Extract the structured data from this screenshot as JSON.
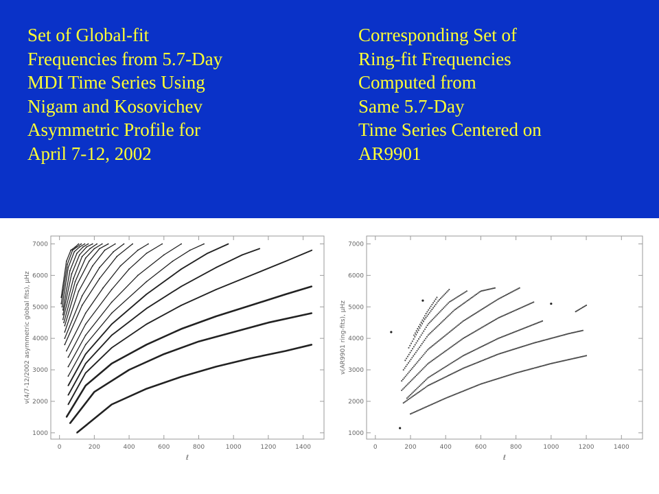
{
  "captions": {
    "left": [
      "Set of Global-fit",
      "Frequencies from 5.7-Day",
      "MDI Time Series Using",
      "Nigam and Kosovichev",
      "Asymmetric Profile for",
      "April 7-12, 2002"
    ],
    "right": [
      "Corresponding Set of",
      "Ring-fit Frequencies",
      "Computed from",
      "Same 5.7-Day",
      "Time Series Centered on",
      "AR9901"
    ]
  },
  "colors": {
    "background": "#0a32c8",
    "caption_text": "#ffff33",
    "marks": "#222222"
  },
  "chart_data": [
    {
      "type": "scatter",
      "xlabel": "ℓ",
      "ylabel": "ν(4/7-12/2002 asymmetric global fits), μHz",
      "xlim": [
        -50,
        1520
      ],
      "ylim": [
        800,
        7250
      ],
      "xticks": [
        0,
        200,
        400,
        600,
        800,
        1000,
        1200,
        1400
      ],
      "yticks": [
        1000,
        2000,
        3000,
        4000,
        5000,
        6000,
        7000
      ],
      "series": [
        {
          "x": [
            100,
            300,
            500,
            700,
            900,
            1100,
            1300,
            1450
          ],
          "y": [
            1000,
            1900,
            2400,
            2780,
            3100,
            3370,
            3600,
            3800
          ]
        },
        {
          "x": [
            60,
            200,
            400,
            600,
            800,
            1000,
            1200,
            1450
          ],
          "y": [
            1300,
            2300,
            3000,
            3500,
            3900,
            4200,
            4500,
            4800
          ]
        },
        {
          "x": [
            40,
            150,
            300,
            500,
            700,
            900,
            1100,
            1300,
            1450
          ],
          "y": [
            1500,
            2500,
            3200,
            3800,
            4300,
            4700,
            5050,
            5400,
            5650
          ]
        },
        {
          "x": [
            50,
            150,
            300,
            500,
            700,
            900,
            1100,
            1300,
            1450
          ],
          "y": [
            1900,
            2900,
            3700,
            4450,
            5050,
            5550,
            6000,
            6450,
            6800
          ]
        },
        {
          "x": [
            50,
            150,
            300,
            500,
            700,
            900,
            1050,
            1150
          ],
          "y": [
            2200,
            3200,
            4100,
            4950,
            5650,
            6250,
            6650,
            6850
          ]
        },
        {
          "x": [
            50,
            150,
            300,
            500,
            700,
            850,
            970
          ],
          "y": [
            2500,
            3500,
            4450,
            5400,
            6200,
            6700,
            7000
          ]
        },
        {
          "x": [
            50,
            150,
            300,
            500,
            650,
            750,
            830
          ],
          "y": [
            2800,
            3800,
            4800,
            5800,
            6450,
            6800,
            7000
          ]
        },
        {
          "x": [
            50,
            150,
            300,
            450,
            600,
            700
          ],
          "y": [
            3100,
            4100,
            5150,
            6000,
            6650,
            7000
          ]
        },
        {
          "x": [
            50,
            150,
            300,
            400,
            500,
            590
          ],
          "y": [
            3400,
            4450,
            5550,
            6200,
            6700,
            7000
          ]
        },
        {
          "x": [
            40,
            150,
            250,
            350,
            450,
            510
          ],
          "y": [
            3600,
            4800,
            5600,
            6300,
            6800,
            7000
          ]
        },
        {
          "x": [
            30,
            130,
            230,
            330,
            420
          ],
          "y": [
            3800,
            5050,
            5900,
            6600,
            7000
          ]
        },
        {
          "x": [
            30,
            130,
            230,
            310,
            370
          ],
          "y": [
            4000,
            5350,
            6250,
            6750,
            7000
          ]
        },
        {
          "x": [
            30,
            110,
            190,
            260,
            320
          ],
          "y": [
            4200,
            5500,
            6300,
            6800,
            7000
          ]
        },
        {
          "x": [
            30,
            100,
            170,
            230,
            280
          ],
          "y": [
            4400,
            5700,
            6450,
            6850,
            7000
          ]
        },
        {
          "x": [
            25,
            90,
            150,
            200,
            245
          ],
          "y": [
            4500,
            5800,
            6550,
            6850,
            7000
          ]
        },
        {
          "x": [
            20,
            80,
            130,
            175,
            215
          ],
          "y": [
            4600,
            5900,
            6600,
            6850,
            7000
          ]
        },
        {
          "x": [
            20,
            70,
            115,
            155,
            190
          ],
          "y": [
            4750,
            6050,
            6650,
            6900,
            7000
          ]
        },
        {
          "x": [
            20,
            60,
            100,
            135,
            165
          ],
          "y": [
            4900,
            6150,
            6700,
            6900,
            7000
          ]
        },
        {
          "x": [
            15,
            50,
            85,
            115,
            145
          ],
          "y": [
            5000,
            6250,
            6750,
            6900,
            7000
          ]
        },
        {
          "x": [
            10,
            45,
            75,
            100,
            125
          ],
          "y": [
            5100,
            6350,
            6800,
            6900,
            7000
          ]
        },
        {
          "x": [
            10,
            40,
            65,
            90,
            110
          ],
          "y": [
            5300,
            6450,
            6800,
            6900,
            7000
          ]
        }
      ]
    },
    {
      "type": "scatter",
      "xlabel": "ℓ",
      "ylabel": "ν(AR9901 ring-fits), μHz",
      "xlim": [
        -50,
        1520
      ],
      "ylim": [
        800,
        7250
      ],
      "xticks": [
        0,
        200,
        400,
        600,
        800,
        1000,
        1200,
        1400
      ],
      "yticks": [
        1000,
        2000,
        3000,
        4000,
        5000,
        6000,
        7000
      ],
      "series": [
        {
          "x": [
            200,
            400,
            600,
            800,
            1000,
            1200
          ],
          "y": [
            1600,
            2100,
            2550,
            2900,
            3200,
            3450
          ]
        },
        {
          "x": [
            160,
            300,
            500,
            700,
            900,
            1100,
            1180
          ],
          "y": [
            1950,
            2500,
            3050,
            3500,
            3850,
            4150,
            4250
          ]
        },
        {
          "x": [
            180,
            300,
            500,
            700,
            950
          ],
          "y": [
            2100,
            2750,
            3450,
            4000,
            4550
          ]
        },
        {
          "x": [
            150,
            300,
            500,
            700,
            900
          ],
          "y": [
            2350,
            3200,
            4000,
            4650,
            5150
          ]
        },
        {
          "x": [
            150,
            300,
            500,
            700,
            820
          ],
          "y": [
            2650,
            3650,
            4550,
            5250,
            5600
          ]
        },
        {
          "x": [
            160,
            300,
            450,
            600,
            680
          ],
          "y": [
            3000,
            4100,
            4900,
            5500,
            5600
          ]
        },
        {
          "x": [
            170,
            300,
            420,
            520
          ],
          "y": [
            3300,
            4450,
            5150,
            5500
          ]
        },
        {
          "x": [
            190,
            280,
            360,
            420
          ],
          "y": [
            3700,
            4600,
            5200,
            5550
          ]
        },
        {
          "x": [
            220,
            290,
            350
          ],
          "y": [
            4100,
            4800,
            5300
          ]
        },
        {
          "x": [
            1140,
            1200
          ],
          "y": [
            4850,
            5050
          ]
        },
        {
          "x": [
            1000
          ],
          "y": [
            5100
          ]
        },
        {
          "x": [
            270
          ],
          "y": [
            5200
          ]
        },
        {
          "x": [
            90
          ],
          "y": [
            4200
          ]
        },
        {
          "x": [
            140
          ],
          "y": [
            1150
          ]
        }
      ]
    }
  ]
}
